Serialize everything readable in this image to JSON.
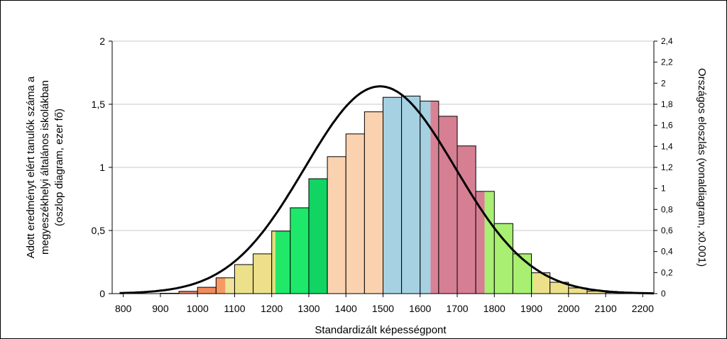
{
  "chart_data": {
    "type": "bar",
    "xlabel": "Standardizált képességpont",
    "ylabel_left": [
      "Adott eredményt elért tanulók száma a",
      "megyeszékhelyi általános iskolákban",
      "(oszlop diagram, ezer fő)"
    ],
    "ylabel_right": "Országos eloszlás (vonaldiagram, x0.001)",
    "xlim": [
      770,
      2230
    ],
    "x_ticks": [
      800,
      900,
      1000,
      1100,
      1200,
      1300,
      1400,
      1500,
      1600,
      1700,
      1800,
      1900,
      2000,
      2100,
      2200
    ],
    "x_tick_labels": [
      "800",
      "900",
      "1000",
      "1100",
      "1200",
      "1300",
      "1400",
      "1500",
      "1600",
      "1700",
      "1800",
      "1900",
      "2000",
      "2100",
      "2200"
    ],
    "ylim_left": [
      0,
      2
    ],
    "y_ticks_left": [
      0,
      0.5,
      1,
      1.5,
      2
    ],
    "y_tick_labels_left": [
      "0",
      "0,5",
      "1",
      "1,5",
      "2"
    ],
    "ylim_right": [
      0,
      2.4
    ],
    "y_ticks_right": [
      0,
      0.2,
      0.4,
      0.6,
      0.8,
      1,
      1.2,
      1.4,
      1.6,
      1.8,
      2,
      2.2,
      2.4
    ],
    "y_tick_labels_right": [
      "0",
      "0,2",
      "0,4",
      "0,6",
      "0,8",
      "1",
      "1,2",
      "1,4",
      "1,6",
      "1,8",
      "2",
      "2,2",
      "2,4"
    ],
    "grid": true,
    "bin_width": 50,
    "bars": [
      {
        "x0": 850,
        "value": 0.0,
        "color": "#e8876a"
      },
      {
        "x0": 900,
        "value": 0.003,
        "color": "#e8876a"
      },
      {
        "x0": 950,
        "value": 0.018,
        "color": "#e8876a"
      },
      {
        "x0": 1000,
        "value": 0.05,
        "color": "#f28c5a"
      },
      {
        "x0": 1050,
        "value": 0.125,
        "color": "#f59a62",
        "split_at": 1075,
        "color2": "#ede39a"
      },
      {
        "x0": 1100,
        "value": 0.23,
        "color": "#ede08a"
      },
      {
        "x0": 1150,
        "value": 0.315,
        "color": "#ede08a"
      },
      {
        "x0": 1200,
        "value": 0.495,
        "color": "#e0e07a",
        "split_at": 1210,
        "color2": "#22e86a"
      },
      {
        "x0": 1250,
        "value": 0.68,
        "color": "#1ee86a"
      },
      {
        "x0": 1300,
        "value": 0.91,
        "color": "#11d463"
      },
      {
        "x0": 1350,
        "value": 1.085,
        "color": "#fbd2b0"
      },
      {
        "x0": 1400,
        "value": 1.265,
        "color": "#fbd2b0"
      },
      {
        "x0": 1450,
        "value": 1.44,
        "color": "#fbd2b0"
      },
      {
        "x0": 1500,
        "value": 1.555,
        "color": "#a6d1e2"
      },
      {
        "x0": 1550,
        "value": 1.565,
        "color": "#a6d1e2"
      },
      {
        "x0": 1600,
        "value": 1.525,
        "color": "#a6d1e2",
        "split_at": 1628,
        "color2": "#d88296"
      },
      {
        "x0": 1650,
        "value": 1.405,
        "color": "#d67f93"
      },
      {
        "x0": 1700,
        "value": 1.17,
        "color": "#d67f93"
      },
      {
        "x0": 1750,
        "value": 0.81,
        "color": "#d67f93",
        "split_at": 1774,
        "color2": "#a8ef72"
      },
      {
        "x0": 1800,
        "value": 0.555,
        "color": "#a8ef72"
      },
      {
        "x0": 1850,
        "value": 0.315,
        "color": "#a8ef72"
      },
      {
        "x0": 1900,
        "value": 0.165,
        "color": "#a8ef72",
        "split_at": 1905,
        "color2": "#ede08a"
      },
      {
        "x0": 1950,
        "value": 0.09,
        "color": "#ede08a"
      },
      {
        "x0": 2000,
        "value": 0.045,
        "color": "#ede08a"
      },
      {
        "x0": 2050,
        "value": 0.02,
        "color": "#ede08a"
      },
      {
        "x0": 2100,
        "value": 0.008,
        "color": "#ede08a"
      },
      {
        "x0": 2150,
        "value": 0.003,
        "color": "#ede08a"
      }
    ],
    "line": {
      "axis": "right",
      "type": "normal",
      "mean": 1492,
      "sd": 203,
      "peak": 1.97,
      "x_range": [
        790,
        2230
      ],
      "color": "#000000"
    }
  }
}
